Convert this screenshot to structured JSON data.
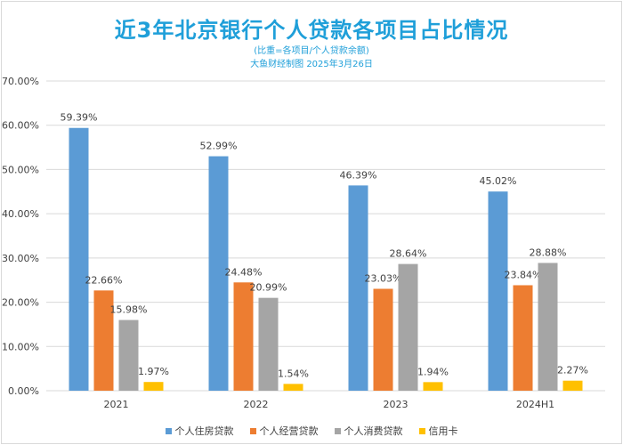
{
  "chart_data": {
    "type": "bar",
    "title": "近3年北京银行个人贷款各项目占比情况",
    "subtitle": [
      "(比重=各项目/个人贷款余额)",
      "大鱼财经制图 2025年3月26日"
    ],
    "categories": [
      "2021",
      "2022",
      "2023",
      "2024H1"
    ],
    "ylim": [
      0,
      70
    ],
    "yticks": [
      "0.00%",
      "10.00%",
      "20.00%",
      "30.00%",
      "40.00%",
      "50.00%",
      "60.00%",
      "70.00%"
    ],
    "grid": true,
    "legend_position": "bottom",
    "series": [
      {
        "name": "个人住房贷款",
        "color": "#5b9bd5",
        "values": [
          59.39,
          52.99,
          46.39,
          45.02
        ],
        "labels": [
          "59.39%",
          "52.99%",
          "46.39%",
          "45.02%"
        ]
      },
      {
        "name": "个人经营贷款",
        "color": "#ed7d31",
        "values": [
          22.66,
          24.48,
          23.03,
          23.84
        ],
        "labels": [
          "22.66%",
          "24.48%",
          "23.03%",
          "23.84%"
        ]
      },
      {
        "name": "个人消费贷款",
        "color": "#a5a5a5",
        "values": [
          15.98,
          20.99,
          28.64,
          28.88
        ],
        "labels": [
          "15.98%",
          "20.99%",
          "28.64%",
          "28.88%"
        ]
      },
      {
        "name": "信用卡",
        "color": "#ffc000",
        "values": [
          1.97,
          1.54,
          1.94,
          2.27
        ],
        "labels": [
          "1.97%",
          "1.54%",
          "1.94%",
          "2.27%"
        ]
      }
    ]
  }
}
